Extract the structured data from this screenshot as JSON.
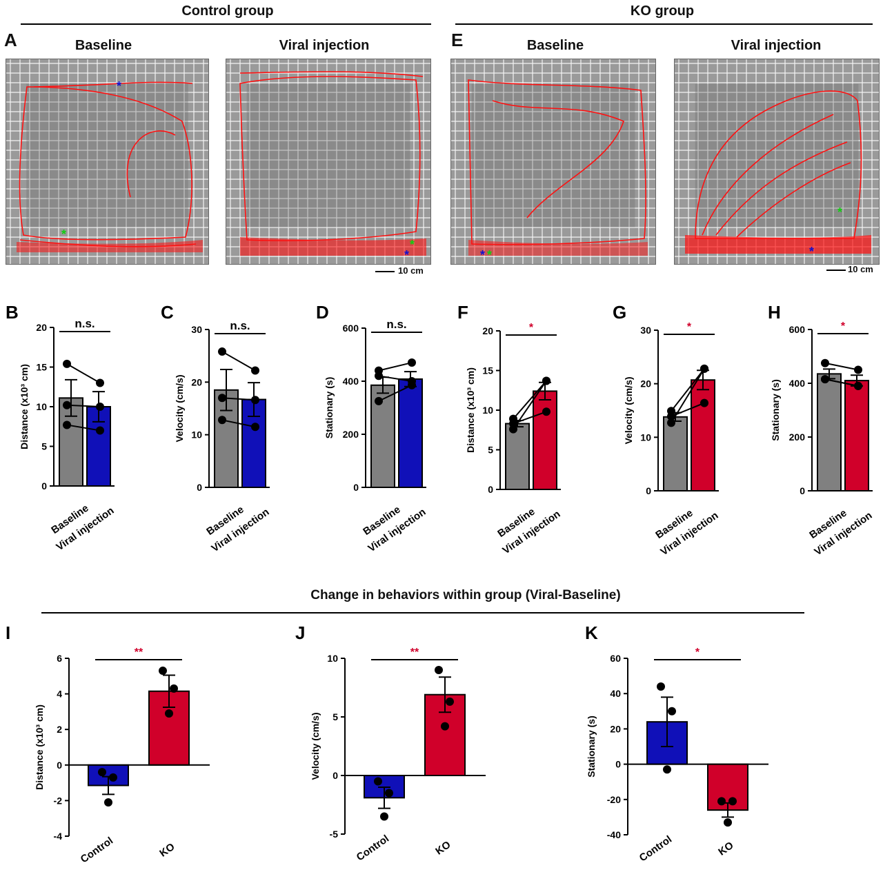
{
  "header": {
    "control_group": "Control group",
    "ko_group": "KO group"
  },
  "trajectory_panels": {
    "A": {
      "letter": "A",
      "baseline_title": "Baseline",
      "viral_title": "Viral injection"
    },
    "E": {
      "letter": "E",
      "baseline_title": "Baseline",
      "viral_title": "Viral injection"
    },
    "scale_bar": "10 cm"
  },
  "section_title": "Change in behaviors within group (Viral-Baseline)",
  "colors": {
    "baseline_bar": "#808080",
    "control_bar": "#1010b8",
    "ko_bar": "#d0002a",
    "significance": "#d0002a",
    "trajectory": "#ff1010"
  },
  "chart_data": [
    {
      "letter": "B",
      "type": "bar",
      "ylabel": "Distance (x10³ cm)",
      "ylim": [
        0,
        20
      ],
      "yticks": [
        0,
        5,
        10,
        15,
        20
      ],
      "categories": [
        "Baseline",
        "Viral injection"
      ],
      "values": [
        11.1,
        10.0
      ],
      "errors": [
        2.3,
        1.9
      ],
      "bar_colors": [
        "#808080",
        "#1010b8"
      ],
      "points": [
        [
          15.4,
          7.7,
          10.2
        ],
        [
          13.0,
          7.0,
          10.0
        ]
      ],
      "paired": true,
      "significance": "n.s."
    },
    {
      "letter": "C",
      "type": "bar",
      "ylabel": "Velocity (cm/s)",
      "ylim": [
        0,
        30
      ],
      "yticks": [
        0,
        10,
        20,
        30
      ],
      "categories": [
        "Baseline",
        "Viral injection"
      ],
      "values": [
        18.5,
        16.7
      ],
      "errors": [
        3.9,
        3.2
      ],
      "bar_colors": [
        "#808080",
        "#1010b8"
      ],
      "points": [
        [
          25.8,
          12.8,
          17.0
        ],
        [
          22.2,
          11.5,
          16.6
        ]
      ],
      "paired": true,
      "significance": "n.s."
    },
    {
      "letter": "D",
      "type": "bar",
      "ylabel": "Stationary (s)",
      "ylim": [
        0,
        600
      ],
      "yticks": [
        0,
        200,
        400,
        600
      ],
      "categories": [
        "Baseline",
        "Viral injection"
      ],
      "values": [
        385,
        408
      ],
      "errors": [
        30,
        28
      ],
      "bar_colors": [
        "#808080",
        "#1010b8"
      ],
      "points": [
        [
          440,
          420,
          325
        ],
        [
          470,
          400,
          385
        ]
      ],
      "paired": true,
      "significance": "n.s."
    },
    {
      "letter": "F",
      "type": "bar",
      "ylabel": "Distance (x10³ cm)",
      "ylim": [
        0,
        20
      ],
      "yticks": [
        0,
        5,
        10,
        15,
        20
      ],
      "categories": [
        "Baseline",
        "Viral injection"
      ],
      "values": [
        8.3,
        12.4
      ],
      "errors": [
        0.4,
        1.1
      ],
      "bar_colors": [
        "#808080",
        "#d0002a"
      ],
      "points": [
        [
          8.9,
          7.6,
          8.3
        ],
        [
          13.7,
          13.7,
          9.8
        ]
      ],
      "paired": true,
      "significance": "*"
    },
    {
      "letter": "G",
      "type": "bar",
      "ylabel": "Velocity (cm/s)",
      "ylim": [
        0,
        30
      ],
      "yticks": [
        0,
        10,
        20,
        30
      ],
      "categories": [
        "Baseline",
        "Viral injection"
      ],
      "values": [
        13.8,
        20.7
      ],
      "errors": [
        0.8,
        1.8
      ],
      "bar_colors": [
        "#808080",
        "#d0002a"
      ],
      "points": [
        [
          14.9,
          12.7,
          13.9
        ],
        [
          22.8,
          22.8,
          16.4
        ]
      ],
      "paired": true,
      "significance": "*"
    },
    {
      "letter": "H",
      "type": "bar",
      "ylabel": "Stationary (s)",
      "ylim": [
        0,
        600
      ],
      "yticks": [
        0,
        200,
        400,
        600
      ],
      "categories": [
        "Baseline",
        "Viral injection"
      ],
      "values": [
        435,
        410
      ],
      "errors": [
        18,
        20
      ],
      "bar_colors": [
        "#808080",
        "#d0002a"
      ],
      "points": [
        [
          475,
          415,
          415
        ],
        [
          450,
          390,
          390
        ]
      ],
      "paired": true,
      "significance": "*"
    },
    {
      "letter": "I",
      "type": "bar",
      "ylabel": "Distance (x10³ cm)",
      "ylim": [
        -4,
        6
      ],
      "yticks": [
        -4,
        -2,
        0,
        2,
        4,
        6
      ],
      "categories": [
        "Control",
        "KO"
      ],
      "values": [
        -1.15,
        4.15
      ],
      "errors": [
        0.5,
        0.9
      ],
      "bar_colors": [
        "#1010b8",
        "#d0002a"
      ],
      "points": [
        [
          -0.4,
          -0.7,
          -2.1
        ],
        [
          5.3,
          4.3,
          2.9
        ]
      ],
      "paired": false,
      "significance": "**"
    },
    {
      "letter": "J",
      "type": "bar",
      "ylabel": "Velocity (cm/s)",
      "ylim": [
        -5,
        10
      ],
      "yticks": [
        -5,
        0,
        5,
        10
      ],
      "categories": [
        "Control",
        "KO"
      ],
      "values": [
        -1.9,
        6.9
      ],
      "errors": [
        0.9,
        1.5
      ],
      "bar_colors": [
        "#1010b8",
        "#d0002a"
      ],
      "points": [
        [
          -0.5,
          -1.5,
          -3.5
        ],
        [
          9.0,
          6.3,
          4.2
        ]
      ],
      "paired": false,
      "significance": "**"
    },
    {
      "letter": "K",
      "type": "bar",
      "ylabel": "Stationary (s)",
      "ylim": [
        -40,
        60
      ],
      "yticks": [
        -40,
        -20,
        0,
        20,
        40,
        60
      ],
      "categories": [
        "Control",
        "KO"
      ],
      "values": [
        24,
        -26
      ],
      "errors": [
        14,
        4
      ],
      "bar_colors": [
        "#1010b8",
        "#d0002a"
      ],
      "points": [
        [
          44,
          30,
          -3
        ],
        [
          -21,
          -21,
          -33
        ]
      ],
      "paired": false,
      "significance": "*"
    }
  ]
}
